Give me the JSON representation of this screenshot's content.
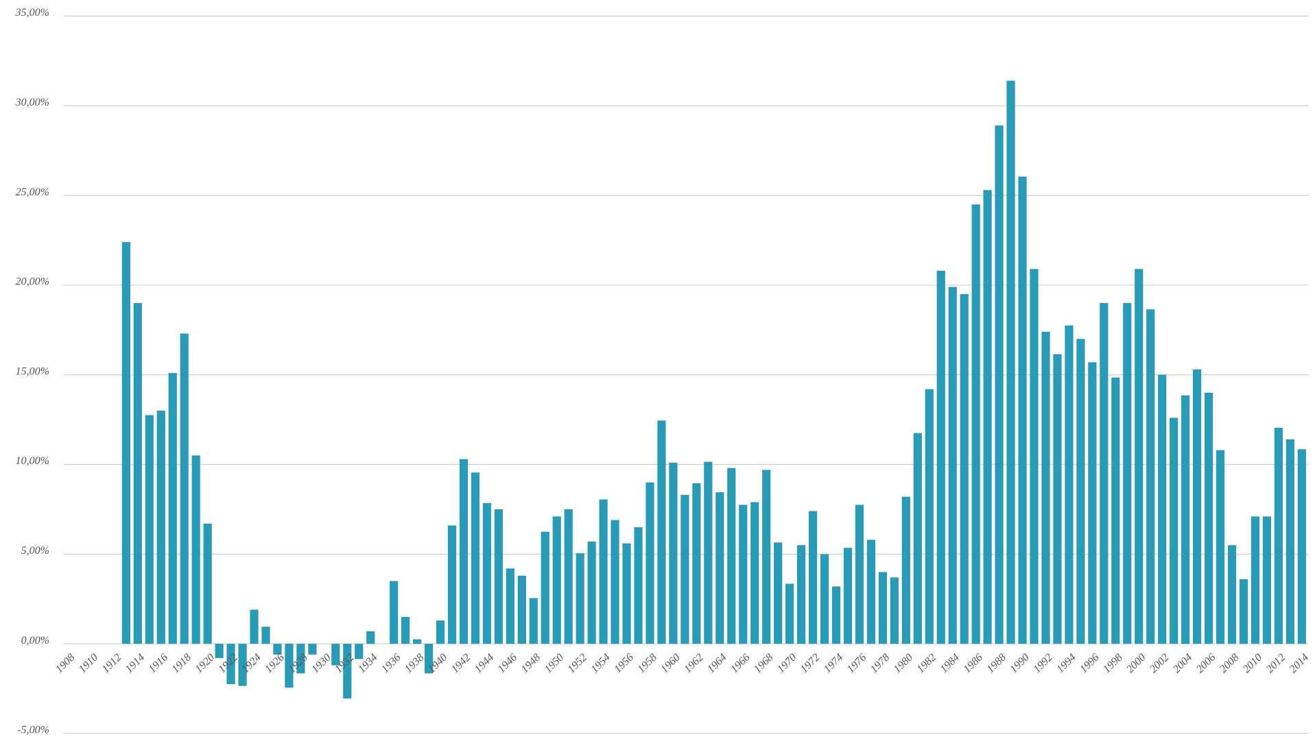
{
  "chart_data": {
    "type": "bar",
    "color": "#2a9bb7",
    "grid": true,
    "categories": [
      "1908",
      null,
      "1910",
      null,
      "1912",
      null,
      "1914",
      null,
      "1916",
      null,
      "1918",
      null,
      "1920",
      null,
      "1922",
      null,
      "1924",
      null,
      "1926",
      null,
      "1928",
      null,
      "1930",
      null,
      "1932",
      null,
      "1934",
      null,
      "1936",
      null,
      "1938",
      null,
      "1940",
      null,
      "1942",
      null,
      "1944",
      null,
      "1946",
      null,
      "1948",
      null,
      "1950",
      null,
      "1952",
      null,
      "1954",
      null,
      "1956",
      null,
      "1958",
      null,
      "1960",
      null,
      "1962",
      null,
      "1964",
      null,
      "1966",
      null,
      "1968",
      null,
      "1970",
      null,
      "1972",
      null,
      "1974",
      null,
      "1976",
      null,
      "1978",
      null,
      "1980",
      null,
      "1982",
      null,
      "1984",
      null,
      "1986",
      null,
      "1988",
      null,
      "1990",
      null,
      "1992",
      null,
      "1994",
      null,
      "1996",
      null,
      "1998",
      null,
      "2000",
      null,
      "2002",
      null,
      "2004",
      null,
      "2006",
      null,
      "2008",
      null,
      "2010",
      null,
      "2012",
      null,
      "2014"
    ],
    "values": [
      null,
      null,
      null,
      null,
      null,
      22.4,
      19.0,
      12.75,
      13.0,
      15.1,
      17.3,
      10.5,
      6.7,
      -0.8,
      -2.25,
      -2.35,
      1.9,
      0.95,
      -0.6,
      -2.45,
      -1.65,
      -0.6,
      null,
      -1.2,
      -3.05,
      -0.85,
      0.7,
      null,
      3.5,
      1.5,
      0.25,
      -1.65,
      1.3,
      6.6,
      10.3,
      9.55,
      7.85,
      7.5,
      4.2,
      3.8,
      2.55,
      6.25,
      7.1,
      7.5,
      5.05,
      5.7,
      8.05,
      6.9,
      5.6,
      6.5,
      9.0,
      12.45,
      10.1,
      8.3,
      8.95,
      10.15,
      8.45,
      9.8,
      7.75,
      7.9,
      9.7,
      5.65,
      3.35,
      5.5,
      7.4,
      5.0,
      3.2,
      5.35,
      7.75,
      5.8,
      4.0,
      3.7,
      8.2,
      11.75,
      14.2,
      20.8,
      19.9,
      19.5,
      24.5,
      25.3,
      28.9,
      31.4,
      26.05,
      20.9,
      17.4,
      16.15,
      17.75,
      17.0,
      15.7,
      19.0,
      14.85,
      19.0,
      20.9,
      18.65,
      15.0,
      12.6,
      13.85,
      15.3,
      14.0,
      10.8,
      5.5,
      3.6,
      7.1,
      7.1,
      12.05,
      11.4,
      10.85
    ],
    "ylim": [
      -5,
      35
    ],
    "yticks": [
      {
        "value": -5,
        "label": "-5,00%"
      },
      {
        "value": 0,
        "label": "0,00%"
      },
      {
        "value": 5,
        "label": "5,00%"
      },
      {
        "value": 10,
        "label": "10,00%"
      },
      {
        "value": 15,
        "label": "15,00%"
      },
      {
        "value": 20,
        "label": "20,00%"
      },
      {
        "value": 25,
        "label": "25,00%"
      },
      {
        "value": 30,
        "label": "30,00%"
      },
      {
        "value": 35,
        "label": "35,00%"
      }
    ]
  }
}
